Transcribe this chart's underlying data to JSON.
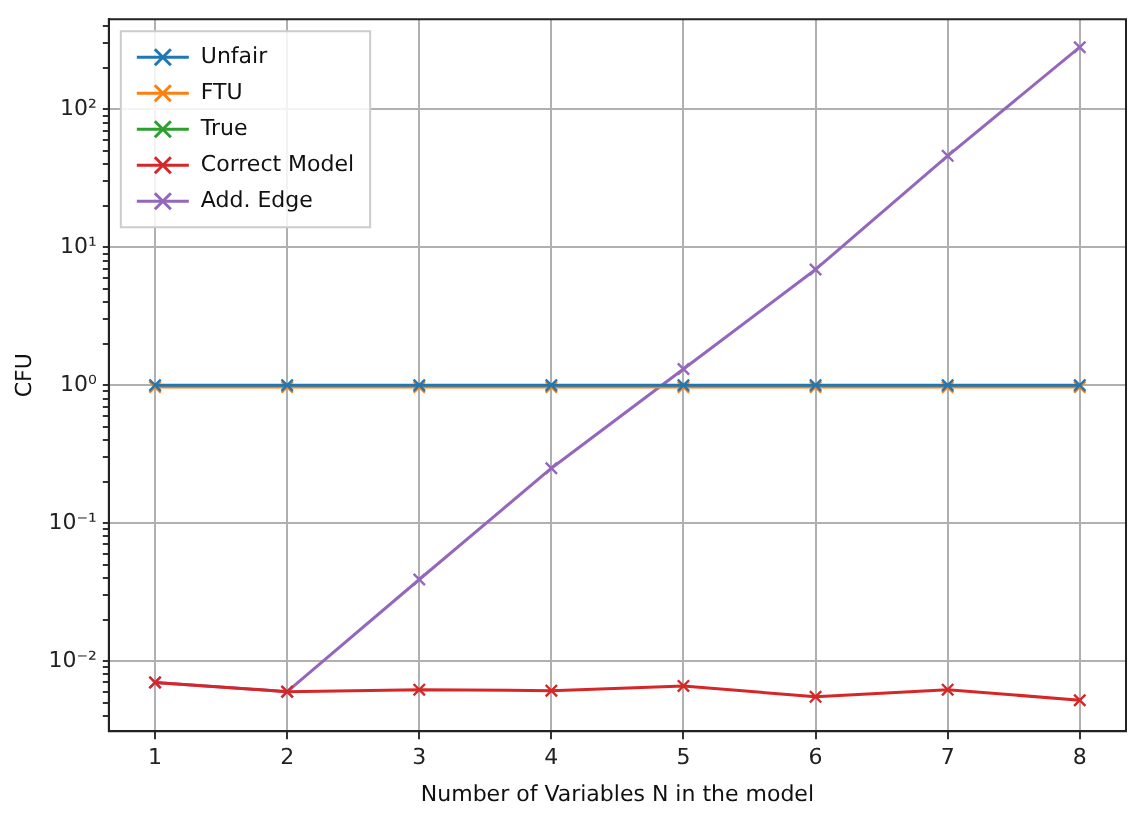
{
  "chart_data": {
    "type": "line",
    "xlabel": "Number of Variables N in the model",
    "ylabel": "CFU",
    "x": [
      1,
      2,
      3,
      4,
      5,
      6,
      7,
      8
    ],
    "series": [
      {
        "name": "Unfair",
        "color": "#1f77b4",
        "values": [
          1,
          1,
          1,
          1,
          1,
          1,
          1,
          1
        ]
      },
      {
        "name": "FTU",
        "color": "#ff7f0e",
        "values": [
          0.97,
          0.97,
          0.97,
          0.97,
          0.97,
          0.97,
          0.97,
          0.97
        ]
      },
      {
        "name": "True",
        "color": "#2ca02c",
        "values": [
          null,
          null,
          null,
          null,
          null,
          null,
          null,
          null
        ]
      },
      {
        "name": "Correct Model",
        "color": "#d62728",
        "values": [
          0.007,
          0.006,
          0.0062,
          0.0061,
          0.0066,
          0.0055,
          0.0062,
          0.0052
        ]
      },
      {
        "name": "Add. Edge",
        "color": "#9467bd",
        "values": [
          0.007,
          0.006,
          0.039,
          0.25,
          1.31,
          6.9,
          46,
          282
        ]
      }
    ],
    "log": "y",
    "xlim": [
      0.65,
      8.35
    ],
    "xticks": [
      1,
      2,
      3,
      4,
      5,
      6,
      7,
      8
    ],
    "ylim": [
      0.0031,
      450
    ],
    "yticks": [
      {
        "value": 0.004,
        "label": null
      },
      {
        "value": 0.005,
        "label": null
      },
      {
        "value": 0.006,
        "label": null
      },
      {
        "value": 0.007,
        "label": null
      },
      {
        "value": 0.008,
        "label": null
      },
      {
        "value": 0.009,
        "label": null
      },
      {
        "value": 0.01,
        "label": "10⁻²"
      },
      {
        "value": 0.02,
        "label": null
      },
      {
        "value": 0.03,
        "label": null
      },
      {
        "value": 0.04,
        "label": null
      },
      {
        "value": 0.05,
        "label": null
      },
      {
        "value": 0.06,
        "label": null
      },
      {
        "value": 0.07,
        "label": null
      },
      {
        "value": 0.08,
        "label": null
      },
      {
        "value": 0.09,
        "label": null
      },
      {
        "value": 0.1,
        "label": "10⁻¹"
      },
      {
        "value": 0.2,
        "label": null
      },
      {
        "value": 0.3,
        "label": null
      },
      {
        "value": 0.4,
        "label": null
      },
      {
        "value": 0.5,
        "label": null
      },
      {
        "value": 0.6,
        "label": null
      },
      {
        "value": 0.7,
        "label": null
      },
      {
        "value": 0.8,
        "label": null
      },
      {
        "value": 0.9,
        "label": null
      },
      {
        "value": 1,
        "label": "10⁰"
      },
      {
        "value": 2,
        "label": null
      },
      {
        "value": 3,
        "label": null
      },
      {
        "value": 4,
        "label": null
      },
      {
        "value": 5,
        "label": null
      },
      {
        "value": 6,
        "label": null
      },
      {
        "value": 7,
        "label": null
      },
      {
        "value": 8,
        "label": null
      },
      {
        "value": 9,
        "label": null
      },
      {
        "value": 10,
        "label": "10¹"
      },
      {
        "value": 20,
        "label": null
      },
      {
        "value": 30,
        "label": null
      },
      {
        "value": 40,
        "label": null
      },
      {
        "value": 50,
        "label": null
      },
      {
        "value": 60,
        "label": null
      },
      {
        "value": 70,
        "label": null
      },
      {
        "value": 80,
        "label": null
      },
      {
        "value": 90,
        "label": null
      },
      {
        "value": 100,
        "label": "10²"
      },
      {
        "value": 200,
        "label": null
      },
      {
        "value": 300,
        "label": null
      },
      {
        "value": 400,
        "label": null
      }
    ],
    "grid": true,
    "legend": "top left",
    "marker": "cross",
    "line_style": "solid"
  }
}
